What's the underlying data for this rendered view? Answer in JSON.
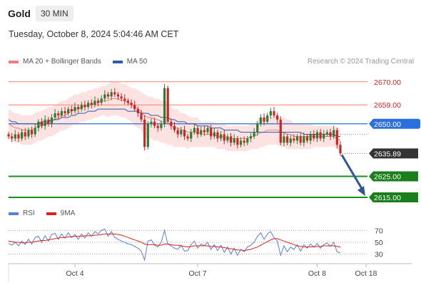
{
  "header": {
    "title": "Gold",
    "timeframe": "30 MIN",
    "datetime": "Tuesday, October 8, 2024 5:04:46 AM CET"
  },
  "legend": {
    "items": [
      {
        "label": "MA 20 + Bollinger Bands",
        "color": "#f08080"
      },
      {
        "label": "MA 50",
        "color": "#2f5aa8"
      }
    ],
    "credit": "Research © 2024 Trading Central"
  },
  "rsi_legend": {
    "items": [
      {
        "label": "RSI",
        "color": "#5b7fd6"
      },
      {
        "label": "9MA",
        "color": "#e02020"
      }
    ]
  },
  "colors": {
    "up": "#2e7d32",
    "down": "#c62828",
    "resistance": "#f08070",
    "pivot": "#2a6fdb",
    "support": "#1e8c1e",
    "current": "#333333",
    "arrow": "#2f5596"
  },
  "chart_data": [
    {
      "type": "candlestick",
      "xlabel": "",
      "ylabel": "",
      "ylim": [
        2614,
        2675
      ],
      "x_ticks": [
        "Oct 4",
        "Oct 7",
        "Oct 8",
        "Oct 18"
      ],
      "levels": [
        {
          "value": 2670.0,
          "label": "2670.00",
          "kind": "resistance"
        },
        {
          "value": 2659.0,
          "label": "2659.00",
          "kind": "resistance"
        },
        {
          "value": 2650.0,
          "label": "2650.00",
          "kind": "pivot"
        },
        {
          "value": 2635.89,
          "label": "2635.89",
          "kind": "current"
        },
        {
          "value": 2625.0,
          "label": "2625.00",
          "kind": "support"
        },
        {
          "value": 2615.0,
          "label": "2615.00",
          "kind": "support"
        }
      ],
      "close": [
        2644,
        2643,
        2645,
        2643,
        2646,
        2644,
        2647,
        2645,
        2648,
        2651,
        2649,
        2652,
        2650,
        2653,
        2655,
        2654,
        2656,
        2655,
        2657,
        2656,
        2658,
        2657,
        2659,
        2658,
        2660,
        2659,
        2661,
        2660,
        2662,
        2664,
        2663,
        2665,
        2664,
        2663,
        2662,
        2661,
        2660,
        2659,
        2657,
        2655,
        2652,
        2639,
        2650,
        2651,
        2649,
        2648,
        2650,
        2667,
        2651,
        2649,
        2647,
        2645,
        2647,
        2644,
        2643,
        2646,
        2648,
        2645,
        2647,
        2646,
        2648,
        2644,
        2646,
        2643,
        2645,
        2642,
        2644,
        2641,
        2643,
        2640,
        2642,
        2641,
        2643,
        2644,
        2646,
        2650,
        2653,
        2651,
        2654,
        2656,
        2654,
        2652,
        2641,
        2644,
        2641,
        2643,
        2642,
        2644,
        2641,
        2644,
        2642,
        2645,
        2643,
        2646,
        2643,
        2645,
        2646,
        2644,
        2647,
        2640,
        2636
      ],
      "ma20": [
        2650,
        2649,
        2648,
        2648,
        2647,
        2647,
        2647,
        2647,
        2648,
        2649,
        2649,
        2650,
        2651,
        2651,
        2652,
        2653,
        2654,
        2654,
        2655,
        2656,
        2657,
        2657,
        2658,
        2658,
        2659,
        2659,
        2660,
        2660,
        2661,
        2661,
        2661,
        2662,
        2662,
        2662,
        2661,
        2661,
        2660,
        2659,
        2658,
        2657,
        2656,
        2654,
        2653,
        2653,
        2652,
        2652,
        2651,
        2651,
        2650,
        2649,
        2648,
        2648,
        2647,
        2647,
        2646,
        2646,
        2646,
        2646,
        2645,
        2645,
        2645,
        2645,
        2645,
        2644,
        2644,
        2644,
        2643,
        2643,
        2643,
        2643,
        2643,
        2643,
        2643,
        2644,
        2644,
        2645,
        2646,
        2646,
        2647,
        2647,
        2647,
        2647,
        2646,
        2646,
        2645,
        2645,
        2644,
        2644,
        2644,
        2644,
        2644,
        2644,
        2644,
        2644,
        2644,
        2644,
        2644,
        2644,
        2644,
        2643,
        2642
      ],
      "bb_width": [
        7,
        7,
        7,
        7,
        7,
        7,
        7,
        7,
        7,
        7,
        7,
        7,
        7,
        7,
        7,
        7,
        7,
        7,
        7,
        7,
        7,
        7,
        7,
        7,
        7,
        7,
        7,
        7,
        7,
        7,
        8,
        8,
        8,
        8,
        8,
        8,
        8,
        8,
        9,
        9,
        9,
        10,
        10,
        10,
        10,
        10,
        10,
        10,
        10,
        9,
        9,
        9,
        8,
        8,
        8,
        7,
        7,
        7,
        6,
        6,
        6,
        6,
        6,
        6,
        6,
        6,
        6,
        6,
        6,
        6,
        6,
        6,
        6,
        6,
        6,
        7,
        7,
        7,
        7,
        7,
        7,
        7,
        7,
        7,
        7,
        7,
        6,
        6,
        6,
        6,
        6,
        6,
        5,
        5,
        5,
        5,
        5,
        5,
        5,
        5,
        6
      ],
      "ma50": [
        2652,
        2651,
        2651,
        2650,
        2650,
        2650,
        2650,
        2650,
        2650,
        2650,
        2651,
        2651,
        2651,
        2652,
        2652,
        2652,
        2653,
        2653,
        2653,
        2654,
        2654,
        2655,
        2655,
        2655,
        2656,
        2656,
        2656,
        2657,
        2657,
        2657,
        2657,
        2657,
        2657,
        2657,
        2657,
        2657,
        2656,
        2656,
        2656,
        2656,
        2655,
        2655,
        2655,
        2654,
        2654,
        2654,
        2653,
        2653,
        2653,
        2652,
        2652,
        2651,
        2651,
        2651,
        2650,
        2650,
        2650,
        2649,
        2649,
        2649,
        2649,
        2648,
        2648,
        2648,
        2648,
        2647,
        2647,
        2647,
        2647,
        2647,
        2646,
        2646,
        2646,
        2646,
        2646,
        2646,
        2646,
        2646,
        2646,
        2646,
        2646,
        2646,
        2646,
        2646,
        2646,
        2646,
        2646,
        2646,
        2646,
        2645,
        2645,
        2645,
        2645,
        2645,
        2645,
        2645,
        2645,
        2645,
        2645,
        2644,
        2644
      ]
    },
    {
      "type": "line",
      "xlabel": "",
      "ylabel": "",
      "ylim": [
        20,
        80
      ],
      "y_ticks": [
        "70",
        "50",
        "30"
      ],
      "series": [
        {
          "name": "RSI",
          "values": [
            48,
            45,
            50,
            44,
            52,
            46,
            55,
            47,
            58,
            60,
            50,
            61,
            52,
            63,
            65,
            55,
            64,
            57,
            66,
            58,
            63,
            55,
            64,
            57,
            66,
            60,
            68,
            64,
            70,
            72,
            60,
            68,
            58,
            55,
            52,
            50,
            47,
            46,
            43,
            40,
            35,
            20,
            52,
            54,
            45,
            42,
            50,
            70,
            47,
            44,
            40,
            38,
            45,
            35,
            36,
            46,
            52,
            40,
            47,
            44,
            50,
            38,
            46,
            36,
            45,
            33,
            42,
            30,
            40,
            28,
            38,
            34,
            42,
            45,
            50,
            60,
            66,
            55,
            64,
            68,
            58,
            52,
            28,
            44,
            34,
            42,
            38,
            46,
            35,
            46,
            40,
            47,
            42,
            48,
            40,
            46,
            49,
            43,
            50,
            34,
            32
          ]
        },
        {
          "name": "9MA",
          "values": [
            52,
            51,
            50,
            50,
            49,
            49,
            50,
            50,
            51,
            52,
            53,
            53,
            54,
            55,
            56,
            57,
            58,
            58,
            59,
            59,
            60,
            60,
            60,
            61,
            61,
            61,
            62,
            62,
            63,
            64,
            64,
            64,
            64,
            63,
            62,
            60,
            58,
            56,
            54,
            52,
            50,
            47,
            46,
            46,
            46,
            45,
            45,
            47,
            47,
            46,
            45,
            45,
            44,
            43,
            42,
            43,
            44,
            44,
            44,
            44,
            44,
            43,
            43,
            42,
            42,
            41,
            40,
            39,
            38,
            37,
            37,
            36,
            37,
            38,
            40,
            42,
            45,
            48,
            51,
            54,
            56,
            56,
            54,
            52,
            50,
            48,
            46,
            44,
            43,
            42,
            42,
            42,
            42,
            43,
            43,
            44,
            44,
            44,
            44,
            43,
            42
          ]
        }
      ]
    }
  ]
}
